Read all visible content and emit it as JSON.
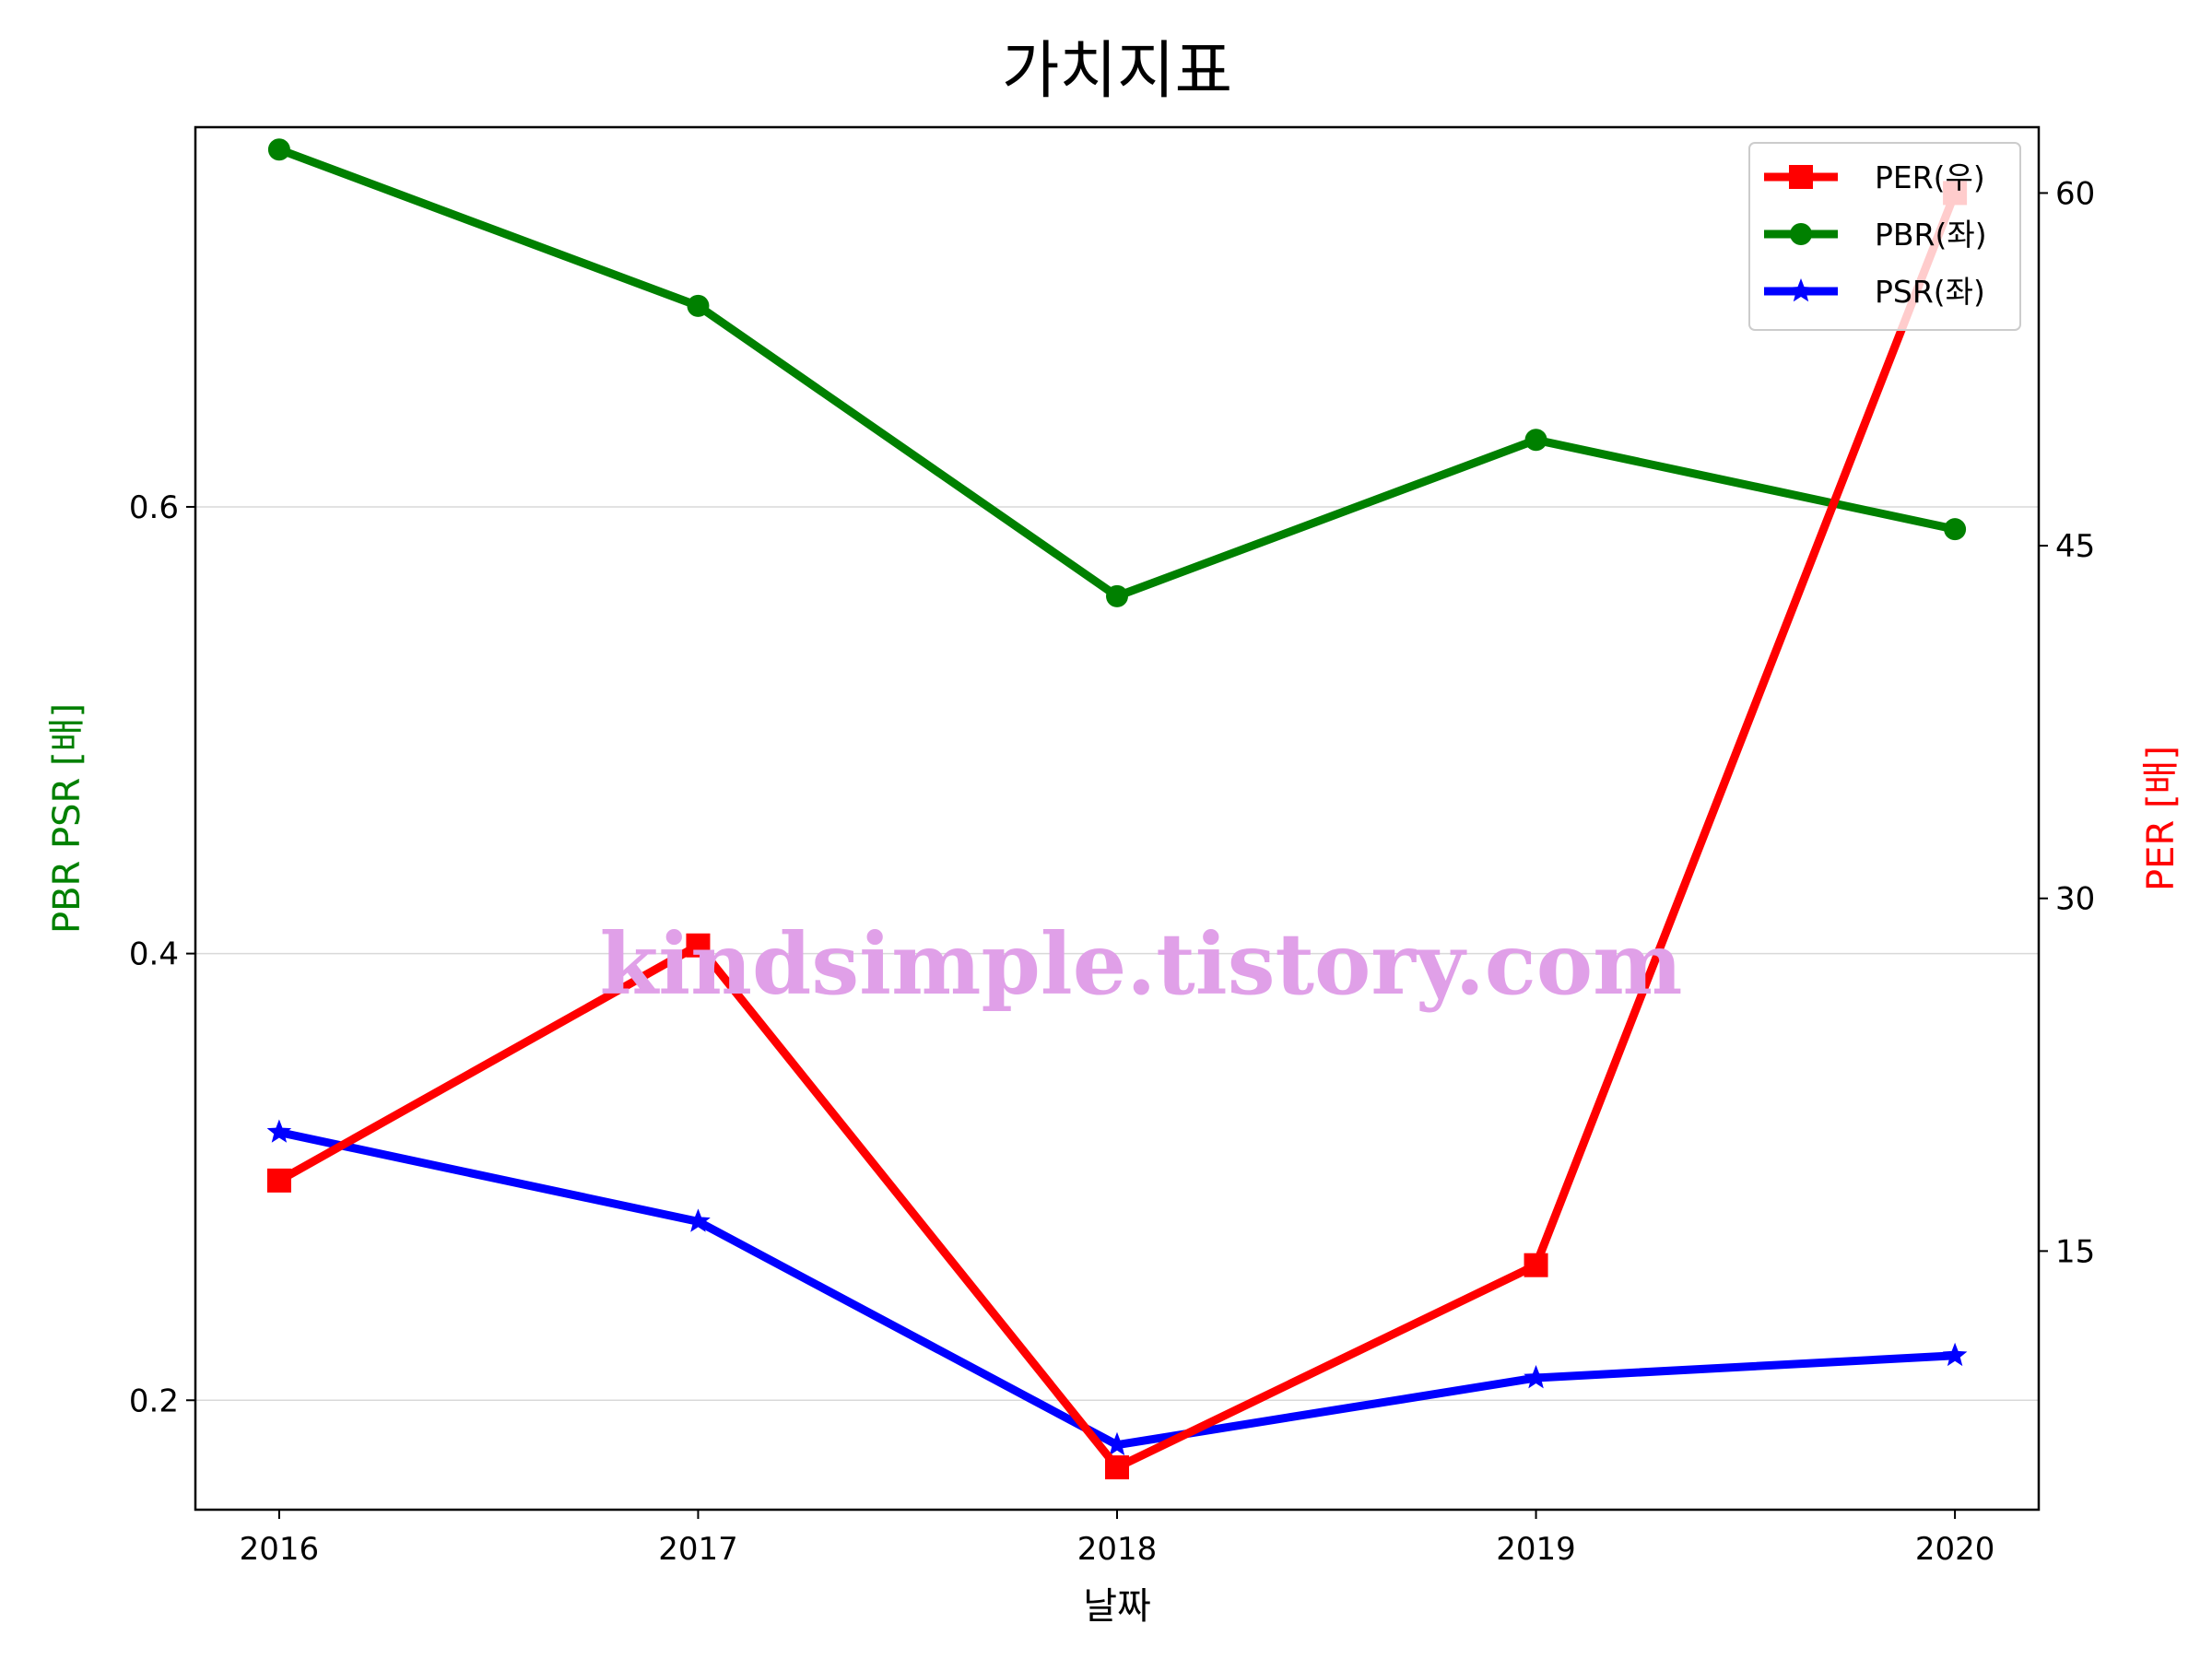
{
  "chart_data": {
    "type": "line",
    "title": "가치지표",
    "xlabel": "날짜",
    "ylabel_left": "PBR PSR [배]",
    "ylabel_right": "PER [배]",
    "x": [
      "2016",
      "2017",
      "2018",
      "2019",
      "2020"
    ],
    "xlim": [
      2015.8,
      2020.2
    ],
    "ylim_left": [
      0.151,
      0.77
    ],
    "ylim_right": [
      4.0,
      62.8
    ],
    "yticks_left": [
      0.2,
      0.4,
      0.6
    ],
    "yticks_left_labels": [
      "0.2",
      "0.4",
      "0.6"
    ],
    "yticks_right": [
      15,
      30,
      45,
      60
    ],
    "yticks_right_labels": [
      "15",
      "30",
      "45",
      "60"
    ],
    "grid": "horizontal (left axis)",
    "legend_position": "top-right",
    "series": [
      {
        "name": "PER(우)",
        "axis": "right",
        "color": "#ff0000",
        "marker": "square",
        "values": [
          18.0,
          28.0,
          5.8,
          14.4,
          60.0
        ]
      },
      {
        "name": "PBR(좌)",
        "axis": "left",
        "color": "#008000",
        "marker": "circle",
        "values": [
          0.76,
          0.69,
          0.56,
          0.63,
          0.59
        ]
      },
      {
        "name": "PSR(좌)",
        "axis": "left",
        "color": "#0000ff",
        "marker": "star",
        "values": [
          0.32,
          0.28,
          0.18,
          0.21,
          0.22
        ]
      }
    ],
    "label_colors": {
      "left": "#008000",
      "right": "#ff0000"
    }
  },
  "watermark": {
    "text": "kindsimple.tistory.com",
    "color": "#e0a0e8"
  }
}
